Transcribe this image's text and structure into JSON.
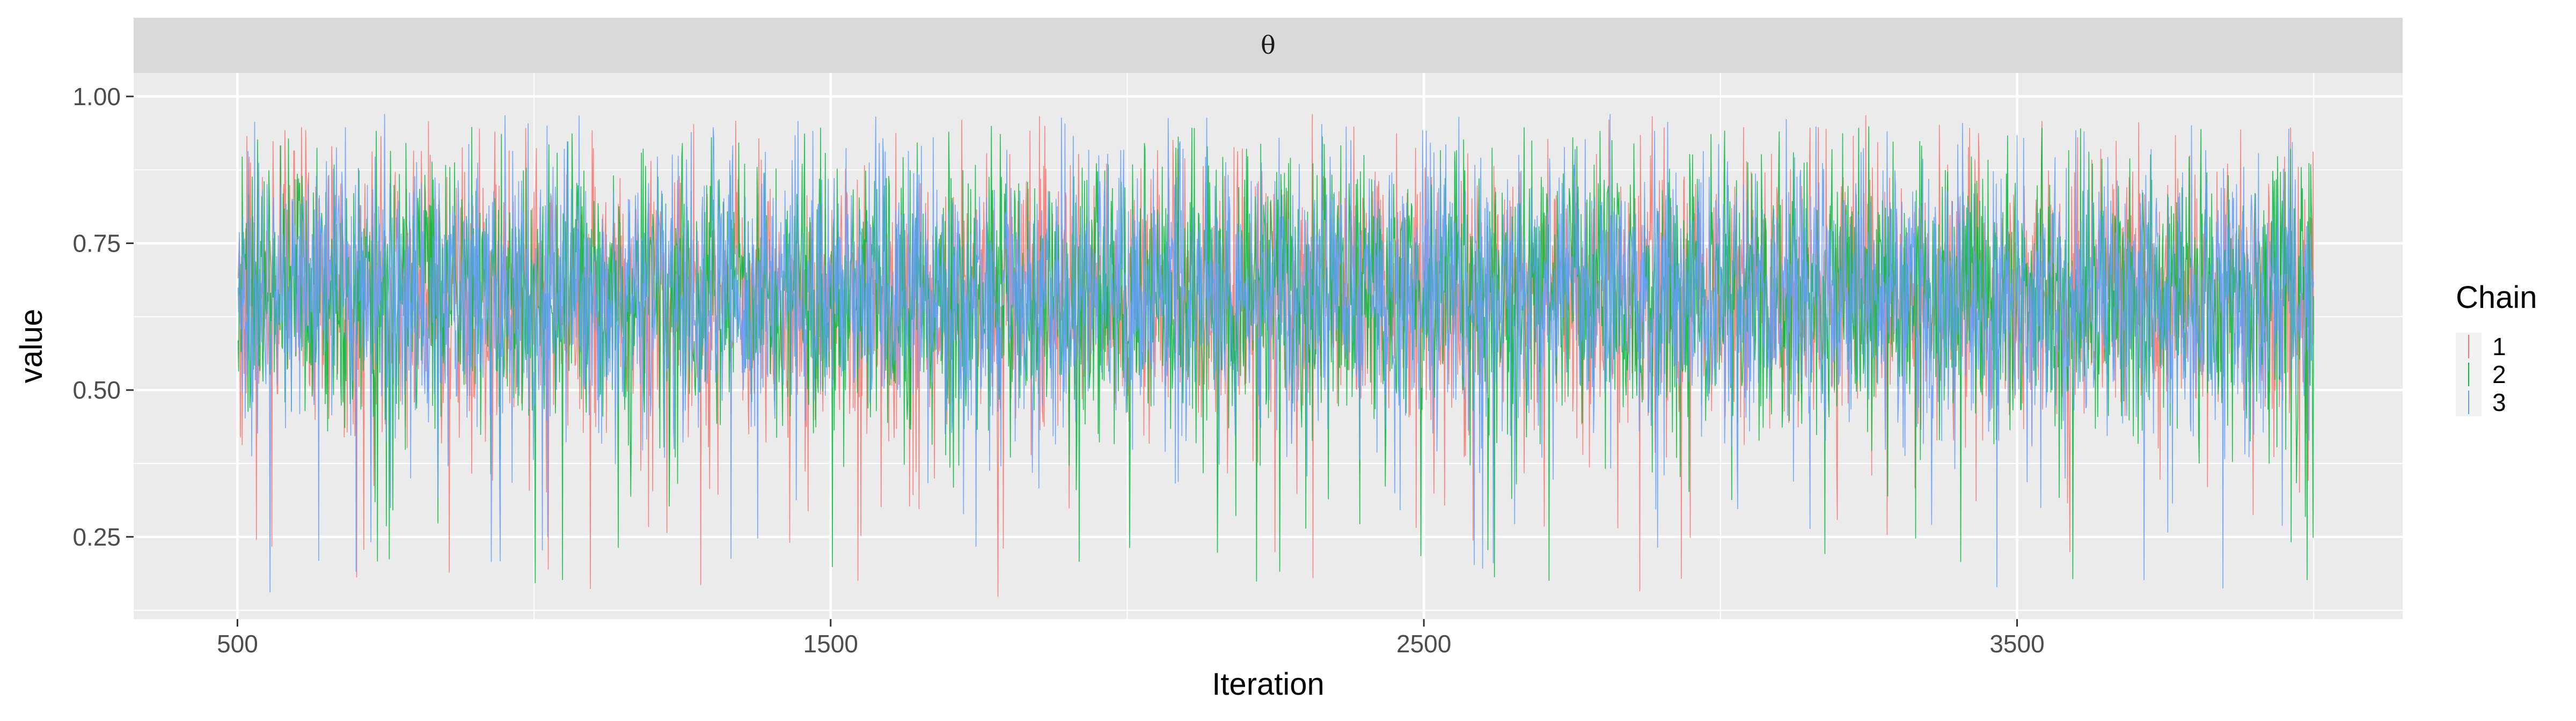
{
  "chart_data": {
    "type": "line",
    "facet_label": "θ",
    "xlabel": "Iteration",
    "ylabel": "value",
    "xlim": [
      325,
      4150
    ],
    "ylim": [
      0.11,
      1.04
    ],
    "x_range": [
      501,
      4000
    ],
    "x_ticks": [
      500,
      1500,
      2500,
      3500
    ],
    "x_tick_labels": [
      "500",
      "1500",
      "2500",
      "3500"
    ],
    "y_ticks": [
      0.25,
      0.5,
      0.75,
      1.0
    ],
    "y_tick_labels": [
      "0.25",
      "0.50",
      "0.75",
      "1.00"
    ],
    "grid": true,
    "legend": {
      "title": "Chain",
      "position": "right"
    },
    "series": [
      {
        "name": "1",
        "color": "#F8766D",
        "center": 0.665,
        "spread": 0.115,
        "min": 0.14,
        "max": 0.97
      },
      {
        "name": "2",
        "color": "#00BA38",
        "center": 0.665,
        "spread": 0.115,
        "min": 0.17,
        "max": 0.95
      },
      {
        "name": "3",
        "color": "#619CFF",
        "center": 0.665,
        "spread": 0.115,
        "min": 0.145,
        "max": 0.97
      }
    ]
  }
}
